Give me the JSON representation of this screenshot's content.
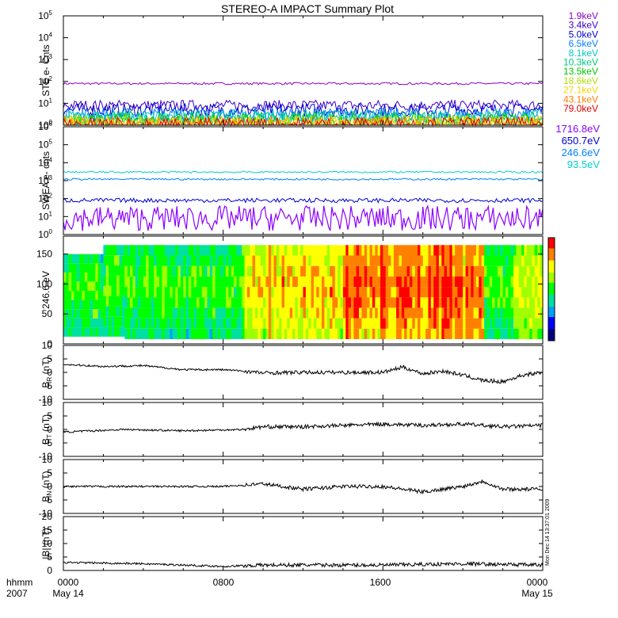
{
  "chart_data": [
    {
      "type": "line",
      "title": "STEREO-A IMPACT Summary Plot",
      "ylabel": "STE e- Cnts",
      "yscale": "log",
      "ylim": [
        1,
        100000
      ],
      "ytick_labels": [
        "10^0",
        "10^1",
        "10^2",
        "10^3",
        "10^4",
        "10^5"
      ],
      "series": [
        {
          "name": "1.9keV",
          "color": "#8b00c8",
          "level": 80,
          "noise": 0.05
        },
        {
          "name": "3.4keV",
          "color": "#3a00c8",
          "level": 8,
          "noise": 0.25
        },
        {
          "name": "5.0keV",
          "color": "#0000c8",
          "level": 5,
          "noise": 0.3
        },
        {
          "name": "6.5keV",
          "color": "#0080ff",
          "level": 3,
          "noise": 0.3
        },
        {
          "name": "8.1keV",
          "color": "#00c8c8",
          "level": 2.5,
          "noise": 0.3
        },
        {
          "name": "10.3keV",
          "color": "#00c880",
          "level": 2,
          "noise": 0.35
        },
        {
          "name": "13.5keV",
          "color": "#00c800",
          "level": 1.6,
          "noise": 0.35
        },
        {
          "name": "18.6keV",
          "color": "#b0e000",
          "level": 1.3,
          "noise": 0.35
        },
        {
          "name": "27.1keV",
          "color": "#ffd000",
          "level": 1.2,
          "noise": 0.35
        },
        {
          "name": "43.1keV",
          "color": "#ff8000",
          "level": 1.1,
          "noise": 0.35
        },
        {
          "name": "79.0keV",
          "color": "#e00000",
          "level": 1.05,
          "noise": 0.35
        }
      ]
    },
    {
      "type": "line",
      "ylabel": "SWEA e- cnts",
      "yscale": "log",
      "ylim": [
        1,
        1000000
      ],
      "ytick_labels": [
        "10^0",
        "10^1",
        "10^2",
        "10^3",
        "10^4",
        "10^5",
        "10^6"
      ],
      "series": [
        {
          "name": "1716.8eV",
          "color": "#8b00ff",
          "level": 8,
          "noise": 0.7
        },
        {
          "name": "650.7eV",
          "color": "#0000d0",
          "level": 80,
          "noise": 0.12
        },
        {
          "name": "246.6eV",
          "color": "#0080ff",
          "level": 1200,
          "noise": 0.05
        },
        {
          "name": "93.5eV",
          "color": "#00d0d0",
          "level": 3000,
          "noise": 0.05
        }
      ]
    },
    {
      "type": "heatmap",
      "ylabel": "246.6 eV",
      "ylim": [
        0,
        180
      ],
      "yticks": [
        0,
        50,
        100,
        150
      ],
      "colormap": [
        "#000080",
        "#0000ff",
        "#00a0ff",
        "#00e0a0",
        "#00ff00",
        "#a0ff00",
        "#ffff00",
        "#ff8000",
        "#ff0000"
      ]
    },
    {
      "type": "line",
      "ylabel": "B_R (nT)",
      "ylim": [
        -10,
        10
      ],
      "yticks": [
        -10,
        -5,
        0,
        5,
        10
      ],
      "x": [
        0,
        2,
        4,
        6,
        8,
        9,
        10,
        12,
        14,
        16,
        17,
        18,
        19,
        20,
        21,
        22,
        23,
        24
      ],
      "y": [
        3,
        2.2,
        2.5,
        1,
        1,
        0.5,
        -0.2,
        0,
        0,
        0,
        2,
        -0.5,
        0.5,
        -1,
        -3,
        -3.5,
        -1,
        0
      ]
    },
    {
      "type": "line",
      "ylabel": "B_T (nT)",
      "ylim": [
        -10,
        10
      ],
      "yticks": [
        -10,
        -5,
        0,
        5,
        10
      ],
      "x": [
        0,
        3,
        6,
        9,
        10,
        12,
        14,
        16,
        18,
        20,
        22,
        24
      ],
      "y": [
        -1,
        0,
        -0.5,
        0,
        1,
        1,
        1.5,
        2,
        1.5,
        2,
        1,
        1.5
      ]
    },
    {
      "type": "line",
      "ylabel": "B_N (nT)",
      "ylim": [
        -10,
        10
      ],
      "yticks": [
        -10,
        -5,
        0,
        5,
        10
      ],
      "x": [
        0,
        4,
        8,
        10,
        12,
        14,
        16,
        18,
        20,
        21,
        22,
        24
      ],
      "y": [
        0,
        0,
        0,
        1,
        -1,
        0,
        0,
        -2,
        0,
        2,
        -1,
        -1
      ]
    },
    {
      "type": "line",
      "ylabel": "|B| (nT)",
      "ylim": [
        0,
        20
      ],
      "yticks": [
        0,
        5,
        10,
        15,
        20
      ],
      "x": [
        0,
        4,
        8,
        10,
        12,
        16,
        20,
        24
      ],
      "y": [
        3,
        2.5,
        1.5,
        2,
        2,
        2,
        2.5,
        2
      ]
    }
  ],
  "legend_top": [
    "1.9keV",
    "3.4keV",
    "5.0keV",
    "6.5keV",
    "8.1keV",
    "10.3keV",
    "13.5keV",
    "18.6keV",
    "27.1keV",
    "43.1keV",
    "79.0keV"
  ],
  "legend_bottom": [
    "1716.8eV",
    "650.7eV",
    "246.6eV",
    "93.5eV"
  ],
  "x_axis": {
    "row_label_1": "hhmm",
    "row_label_2": "2007",
    "ticks": [
      "0000",
      "0800",
      "1600",
      "0000"
    ],
    "date_left": "May 14",
    "date_right": "May 15"
  },
  "timestamp": "Mon Dec 14 13:37:01 2009"
}
